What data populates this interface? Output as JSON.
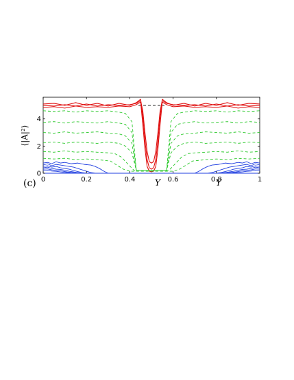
{
  "chart_data": {
    "type": "line",
    "panel_label": "(c)",
    "xlabel": "Y",
    "xlabel_repeat": "Y",
    "ylabel": "⟨|A|²⟩",
    "xlim": [
      0,
      1
    ],
    "ylim": [
      0,
      5.6
    ],
    "x_ticks": [
      "0",
      "0.2",
      "0.4",
      "0.6",
      "0.8",
      "1"
    ],
    "y_ticks": [
      "0",
      "2",
      "4"
    ],
    "grid": false,
    "legend": "none",
    "colors": {
      "red": "#e01010",
      "green": "#28c828",
      "blue": "#1f3ee0",
      "black": "#000000"
    },
    "series": [
      {
        "color": "#000000",
        "style": "dashed",
        "x": [
          0.44,
          0.56
        ],
        "y": [
          5.0,
          5.0
        ]
      },
      {
        "color": "#e01010",
        "style": "solid",
        "x": [
          0.0,
          0.05,
          0.1,
          0.15,
          0.2,
          0.25,
          0.3,
          0.35,
          0.4,
          0.43,
          0.45,
          0.46,
          0.47,
          0.48,
          0.49,
          0.5,
          0.51,
          0.52,
          0.53,
          0.54,
          0.55,
          0.57,
          0.6,
          0.65,
          0.7,
          0.75,
          0.8,
          0.85,
          0.9,
          0.95,
          1.0
        ],
        "y": [
          5.0,
          4.95,
          5.05,
          4.95,
          5.1,
          4.95,
          5.05,
          5.0,
          5.05,
          5.15,
          5.35,
          4.6,
          3.0,
          1.6,
          0.85,
          0.75,
          0.85,
          1.6,
          3.0,
          4.6,
          5.35,
          5.15,
          5.05,
          5.0,
          5.05,
          4.95,
          5.1,
          4.95,
          5.05,
          4.95,
          5.0
        ]
      },
      {
        "color": "#e01010",
        "style": "solid",
        "x": [
          0.0,
          0.05,
          0.1,
          0.15,
          0.2,
          0.25,
          0.3,
          0.35,
          0.4,
          0.43,
          0.45,
          0.46,
          0.47,
          0.48,
          0.49,
          0.5,
          0.51,
          0.52,
          0.53,
          0.54,
          0.55,
          0.57,
          0.6,
          0.65,
          0.7,
          0.75,
          0.8,
          0.85,
          0.9,
          0.95,
          1.0
        ],
        "y": [
          5.1,
          5.15,
          5.0,
          5.2,
          5.0,
          5.15,
          4.95,
          5.15,
          5.0,
          5.2,
          5.45,
          4.2,
          2.4,
          1.0,
          0.4,
          0.3,
          0.4,
          1.0,
          2.4,
          4.2,
          5.45,
          5.2,
          5.0,
          5.15,
          4.95,
          5.15,
          5.0,
          5.2,
          5.0,
          5.15,
          5.1
        ]
      },
      {
        "color": "#e01010",
        "style": "solid",
        "x": [
          0.0,
          0.05,
          0.1,
          0.15,
          0.2,
          0.25,
          0.3,
          0.35,
          0.4,
          0.43,
          0.45,
          0.46,
          0.47,
          0.48,
          0.49,
          0.5,
          0.51,
          0.52,
          0.53,
          0.54,
          0.55,
          0.57,
          0.6,
          0.65,
          0.7,
          0.75,
          0.8,
          0.85,
          0.9,
          0.95,
          1.0
        ],
        "y": [
          4.85,
          4.9,
          4.8,
          4.95,
          4.85,
          4.9,
          4.85,
          4.95,
          4.9,
          5.05,
          5.25,
          3.6,
          1.8,
          0.5,
          0.15,
          0.1,
          0.15,
          0.5,
          1.8,
          3.6,
          5.25,
          5.05,
          4.9,
          4.95,
          4.85,
          4.9,
          4.85,
          4.95,
          4.8,
          4.9,
          4.85
        ]
      },
      {
        "color": "#28c828",
        "style": "dashed",
        "x": [
          0.0,
          0.05,
          0.1,
          0.15,
          0.2,
          0.25,
          0.3,
          0.35,
          0.38,
          0.41,
          0.43,
          0.57,
          0.59,
          0.62,
          0.65,
          0.7,
          0.75,
          0.8,
          0.85,
          0.9,
          0.95,
          1.0
        ],
        "y": [
          4.6,
          4.55,
          4.6,
          4.5,
          4.6,
          4.55,
          4.6,
          4.5,
          4.4,
          3.8,
          0.2,
          0.2,
          3.8,
          4.4,
          4.5,
          4.6,
          4.55,
          4.6,
          4.5,
          4.6,
          4.55,
          4.6
        ]
      },
      {
        "color": "#28c828",
        "style": "dashed",
        "x": [
          0.0,
          0.05,
          0.1,
          0.15,
          0.2,
          0.25,
          0.3,
          0.35,
          0.38,
          0.41,
          0.43,
          0.57,
          0.59,
          0.62,
          0.65,
          0.7,
          0.75,
          0.8,
          0.85,
          0.9,
          0.95,
          1.0
        ],
        "y": [
          3.75,
          3.8,
          3.7,
          3.8,
          3.75,
          3.7,
          3.8,
          3.7,
          3.6,
          3.0,
          0.2,
          0.2,
          3.0,
          3.6,
          3.7,
          3.8,
          3.7,
          3.75,
          3.8,
          3.7,
          3.8,
          3.75
        ]
      },
      {
        "color": "#28c828",
        "style": "dashed",
        "x": [
          0.0,
          0.05,
          0.1,
          0.15,
          0.2,
          0.25,
          0.3,
          0.35,
          0.38,
          0.41,
          0.43,
          0.57,
          0.59,
          0.62,
          0.65,
          0.7,
          0.75,
          0.8,
          0.85,
          0.9,
          0.95,
          1.0
        ],
        "y": [
          3.0,
          2.95,
          3.05,
          2.95,
          3.0,
          3.05,
          2.95,
          2.9,
          2.75,
          2.2,
          0.2,
          0.2,
          2.2,
          2.75,
          2.9,
          2.95,
          3.05,
          3.0,
          2.95,
          3.05,
          2.95,
          3.0
        ]
      },
      {
        "color": "#28c828",
        "style": "dashed",
        "x": [
          0.0,
          0.05,
          0.1,
          0.15,
          0.2,
          0.25,
          0.3,
          0.35,
          0.38,
          0.41,
          0.43,
          0.57,
          0.59,
          0.62,
          0.65,
          0.7,
          0.75,
          0.8,
          0.85,
          0.9,
          0.95,
          1.0
        ],
        "y": [
          2.25,
          2.3,
          2.2,
          2.3,
          2.25,
          2.2,
          2.3,
          2.2,
          2.0,
          1.5,
          0.2,
          0.2,
          1.5,
          2.0,
          2.2,
          2.3,
          2.2,
          2.25,
          2.3,
          2.2,
          2.3,
          2.25
        ]
      },
      {
        "color": "#28c828",
        "style": "dashed",
        "x": [
          0.0,
          0.05,
          0.1,
          0.15,
          0.2,
          0.25,
          0.3,
          0.33,
          0.36,
          0.39,
          0.42,
          0.58,
          0.61,
          0.64,
          0.67,
          0.7,
          0.75,
          0.8,
          0.85,
          0.9,
          0.95,
          1.0
        ],
        "y": [
          1.6,
          1.55,
          1.65,
          1.55,
          1.6,
          1.55,
          1.5,
          1.45,
          1.2,
          0.7,
          0.2,
          0.2,
          0.7,
          1.2,
          1.45,
          1.5,
          1.55,
          1.6,
          1.55,
          1.65,
          1.55,
          1.6
        ]
      },
      {
        "color": "#28c828",
        "style": "dashed",
        "x": [
          0.0,
          0.05,
          0.1,
          0.15,
          0.2,
          0.25,
          0.28,
          0.31,
          0.34,
          0.37,
          0.4,
          0.6,
          0.63,
          0.66,
          0.69,
          0.72,
          0.75,
          0.8,
          0.85,
          0.9,
          0.95,
          1.0
        ],
        "y": [
          1.1,
          1.05,
          1.1,
          1.0,
          1.05,
          1.0,
          0.95,
          0.9,
          0.6,
          0.3,
          0.15,
          0.15,
          0.3,
          0.6,
          0.9,
          0.95,
          1.0,
          1.05,
          1.0,
          1.1,
          1.05,
          1.1
        ]
      },
      {
        "color": "#1f3ee0",
        "style": "solid",
        "x": [
          0.0,
          0.02,
          0.04,
          0.06,
          0.08,
          0.1,
          0.13,
          0.16,
          0.19,
          0.22,
          0.24,
          0.26,
          0.28,
          0.3
        ],
        "y": [
          0.75,
          0.8,
          0.7,
          0.85,
          0.75,
          0.8,
          0.7,
          0.75,
          0.65,
          0.6,
          0.5,
          0.35,
          0.15,
          0.0
        ]
      },
      {
        "color": "#1f3ee0",
        "style": "solid",
        "x": [
          0.0,
          0.02,
          0.04,
          0.06,
          0.08,
          0.1,
          0.12,
          0.14,
          0.16,
          0.18,
          0.2,
          0.22,
          0.24
        ],
        "y": [
          0.6,
          0.7,
          0.55,
          0.65,
          0.6,
          0.55,
          0.5,
          0.45,
          0.35,
          0.25,
          0.15,
          0.05,
          0.0
        ]
      },
      {
        "color": "#1f3ee0",
        "style": "solid",
        "x": [
          0.0,
          0.02,
          0.04,
          0.06,
          0.08,
          0.1,
          0.12,
          0.14,
          0.16,
          0.18,
          0.2
        ],
        "y": [
          0.5,
          0.55,
          0.45,
          0.5,
          0.4,
          0.35,
          0.3,
          0.2,
          0.12,
          0.05,
          0.0
        ]
      },
      {
        "color": "#1f3ee0",
        "style": "solid",
        "x": [
          0.0,
          0.02,
          0.04,
          0.06,
          0.08,
          0.1,
          0.12,
          0.14,
          0.16,
          0.18
        ],
        "y": [
          0.4,
          0.45,
          0.35,
          0.3,
          0.28,
          0.22,
          0.15,
          0.1,
          0.05,
          0.0
        ]
      },
      {
        "color": "#1f3ee0",
        "style": "solid",
        "x": [
          0.0,
          0.02,
          0.04,
          0.06,
          0.08,
          0.1,
          0.12,
          0.14,
          0.16
        ],
        "y": [
          0.3,
          0.32,
          0.25,
          0.22,
          0.18,
          0.12,
          0.08,
          0.04,
          0.0
        ]
      },
      {
        "color": "#1f3ee0",
        "style": "solid",
        "x": [
          0.0,
          0.02,
          0.04,
          0.06,
          0.08,
          0.1,
          0.12,
          0.14
        ],
        "y": [
          0.2,
          0.22,
          0.16,
          0.14,
          0.1,
          0.06,
          0.03,
          0.0
        ]
      },
      {
        "color": "#1f3ee0",
        "style": "solid",
        "x": [
          0.7,
          0.72,
          0.74,
          0.76,
          0.78,
          0.81,
          0.84,
          0.87,
          0.9,
          0.92,
          0.94,
          0.96,
          0.98,
          1.0
        ],
        "y": [
          0.0,
          0.15,
          0.35,
          0.5,
          0.6,
          0.65,
          0.75,
          0.7,
          0.8,
          0.75,
          0.85,
          0.7,
          0.8,
          0.75
        ]
      },
      {
        "color": "#1f3ee0",
        "style": "solid",
        "x": [
          0.76,
          0.78,
          0.8,
          0.82,
          0.84,
          0.86,
          0.88,
          0.9,
          0.92,
          0.94,
          0.96,
          0.98,
          1.0
        ],
        "y": [
          0.0,
          0.05,
          0.15,
          0.25,
          0.35,
          0.45,
          0.5,
          0.55,
          0.6,
          0.65,
          0.55,
          0.7,
          0.6
        ]
      },
      {
        "color": "#1f3ee0",
        "style": "solid",
        "x": [
          0.8,
          0.82,
          0.84,
          0.86,
          0.88,
          0.9,
          0.92,
          0.94,
          0.96,
          0.98,
          1.0
        ],
        "y": [
          0.0,
          0.05,
          0.12,
          0.2,
          0.3,
          0.35,
          0.4,
          0.5,
          0.45,
          0.55,
          0.5
        ]
      },
      {
        "color": "#1f3ee0",
        "style": "solid",
        "x": [
          0.82,
          0.84,
          0.86,
          0.88,
          0.9,
          0.92,
          0.94,
          0.96,
          0.98,
          1.0
        ],
        "y": [
          0.0,
          0.05,
          0.1,
          0.15,
          0.22,
          0.28,
          0.3,
          0.35,
          0.45,
          0.4
        ]
      },
      {
        "color": "#1f3ee0",
        "style": "solid",
        "x": [
          0.84,
          0.86,
          0.88,
          0.9,
          0.92,
          0.94,
          0.96,
          0.98,
          1.0
        ],
        "y": [
          0.0,
          0.04,
          0.08,
          0.12,
          0.18,
          0.22,
          0.25,
          0.32,
          0.3
        ]
      },
      {
        "color": "#1f3ee0",
        "style": "solid",
        "x": [
          0.86,
          0.88,
          0.9,
          0.92,
          0.94,
          0.96,
          0.98,
          1.0
        ],
        "y": [
          0.0,
          0.03,
          0.06,
          0.1,
          0.14,
          0.16,
          0.22,
          0.2
        ]
      },
      {
        "color": "#1f3ee0",
        "style": "solid",
        "x": [
          0.0,
          1.0
        ],
        "y": [
          0.0,
          0.0
        ]
      }
    ]
  }
}
